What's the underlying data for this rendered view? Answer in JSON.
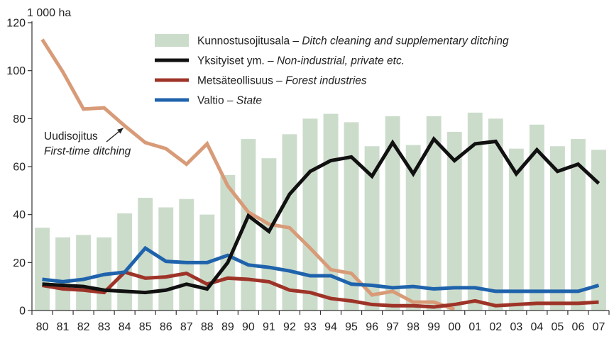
{
  "chart_data": {
    "type": "bar",
    "y_unit": "1 000 ha",
    "categories": [
      "80",
      "81",
      "82",
      "83",
      "84",
      "85",
      "86",
      "87",
      "88",
      "89",
      "90",
      "91",
      "92",
      "93",
      "94",
      "95",
      "96",
      "97",
      "98",
      "99",
      "00",
      "01",
      "02",
      "03",
      "04",
      "05",
      "06",
      "07"
    ],
    "ylim": [
      0,
      120
    ],
    "yticks": [
      0,
      20,
      40,
      60,
      80,
      100,
      120
    ],
    "grid": false,
    "legend_position": "top-center",
    "series": [
      {
        "id": "ditch_cleaning",
        "kind": "bar",
        "name_fi": "Kunnostusojitusala",
        "name_en": "Ditch cleaning and supplementary ditching",
        "color": "#ccdccb",
        "values": [
          34.5,
          30.5,
          31.5,
          30.5,
          40.5,
          47,
          43,
          46.5,
          40,
          56.5,
          71.5,
          63.5,
          73.5,
          80,
          82,
          78.5,
          68.5,
          81,
          69,
          81,
          74.5,
          82.5,
          80,
          67.5,
          77.5,
          68.5,
          71.5,
          67
        ]
      },
      {
        "id": "non_industrial_private",
        "kind": "line",
        "name_fi": "Yksityiset ym.",
        "name_en": "Non-industrial, private etc.",
        "color": "#111111",
        "values": [
          11,
          10.5,
          10,
          8.5,
          8,
          7.5,
          8.5,
          11,
          9,
          20,
          39.5,
          33,
          48.5,
          58,
          62.5,
          64,
          56,
          70,
          57,
          71.5,
          62.5,
          69.5,
          70.5,
          57,
          67,
          58,
          61,
          53
        ]
      },
      {
        "id": "forest_industries",
        "kind": "line",
        "name_fi": "Metsäteollisuus",
        "name_en": "Forest industries",
        "color": "#9e3428",
        "values": [
          10.5,
          9,
          8.5,
          7.5,
          16,
          13.5,
          14,
          15.5,
          11,
          13.5,
          13,
          12,
          8.5,
          7.5,
          5,
          4,
          2.5,
          2,
          2,
          1.5,
          2.5,
          4,
          2,
          2.5,
          3,
          3,
          3,
          3.5
        ]
      },
      {
        "id": "state",
        "kind": "line",
        "name_fi": "Valtio",
        "name_en": "State",
        "color": "#1f63ac",
        "values": [
          13,
          12,
          13,
          15,
          16,
          26,
          20.5,
          20,
          20,
          23,
          19,
          18,
          16.5,
          14.5,
          14.5,
          11,
          10.5,
          9.5,
          10,
          9,
          9.5,
          9.5,
          8,
          8,
          8,
          8,
          8,
          10.5
        ]
      },
      {
        "id": "first_time_ditching",
        "kind": "line",
        "name_fi": "Uudisojitus",
        "name_en": "First-time ditching",
        "color": "#d89b78",
        "values": [
          113,
          99.5,
          84,
          84.5,
          77,
          70,
          67.5,
          61,
          69.5,
          52,
          41,
          36,
          34.5,
          26,
          17,
          15.5,
          6.5,
          8,
          3.5,
          3.5,
          0.5,
          null,
          null,
          null,
          null,
          null,
          null,
          null
        ]
      }
    ],
    "legend": [
      {
        "series": "ditch_cleaning",
        "fi": "Kunnostusojitusala",
        "en": "Ditch cleaning and supplementary ditching"
      },
      {
        "series": "non_industrial_private",
        "fi": "Yksityiset ym.",
        "en": "Non-industrial, private etc."
      },
      {
        "series": "forest_industries",
        "fi": "Metsäteollisuus",
        "en": "Forest industries"
      },
      {
        "series": "state",
        "fi": "Valtio",
        "en": "State"
      }
    ],
    "annotations": [
      {
        "series": "first_time_ditching",
        "fi": "Uudisojitus",
        "en": "First-time ditching",
        "points_to_category": "84"
      }
    ]
  }
}
